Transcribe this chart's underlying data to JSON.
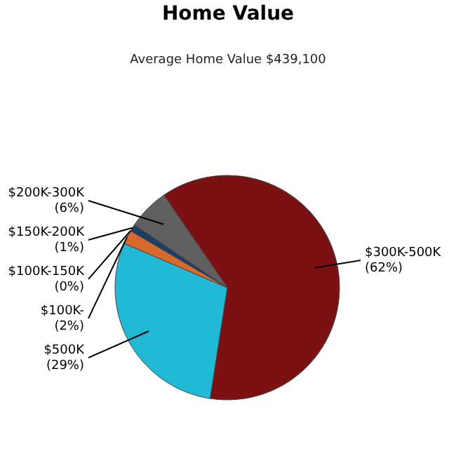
{
  "chart_data": {
    "type": "pie",
    "title": "Home Value",
    "subtitle": "Average Home Value  $439,100",
    "categories": [
      "$300K-500K",
      "$500K",
      "$100K-",
      "$100K-150K",
      "$150K-200K",
      "$200K-300K"
    ],
    "values": [
      62,
      29,
      2,
      0,
      1,
      6
    ],
    "colors": [
      "#7b1113",
      "#22b9d6",
      "#d8692c",
      "#3f7f3f",
      "#1b3d66",
      "#5f5f5f"
    ],
    "value_labels": [
      "(62%)",
      "(29%)",
      "(2%)",
      "(0%)",
      "(1%)",
      "(6%)"
    ]
  }
}
